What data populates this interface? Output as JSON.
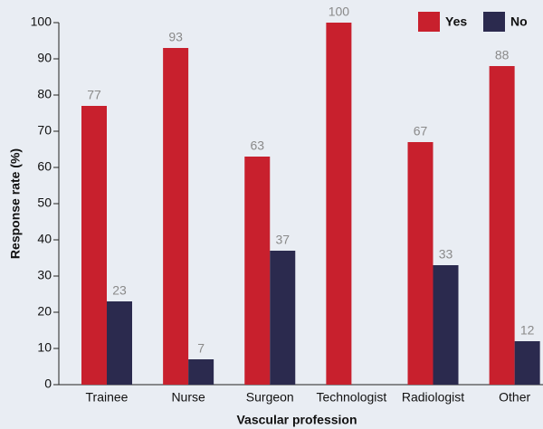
{
  "chart_data": {
    "type": "bar",
    "categories": [
      "Trainee",
      "Nurse",
      "Surgeon",
      "Technologist",
      "Radiologist",
      "Other"
    ],
    "series": [
      {
        "name": "Yes",
        "color": "#c8202d",
        "values": [
          77,
          93,
          63,
          100,
          67,
          88
        ]
      },
      {
        "name": "No",
        "color": "#2b2a4e",
        "values": [
          23,
          7,
          37,
          null,
          33,
          12
        ]
      }
    ],
    "x_label": "Vascular profession",
    "y_label": "Response rate (%)",
    "ylim": [
      0,
      100
    ],
    "yticks": [
      0,
      10,
      20,
      30,
      40,
      50,
      60,
      70,
      80,
      90,
      100
    ],
    "legend": "top-right"
  }
}
